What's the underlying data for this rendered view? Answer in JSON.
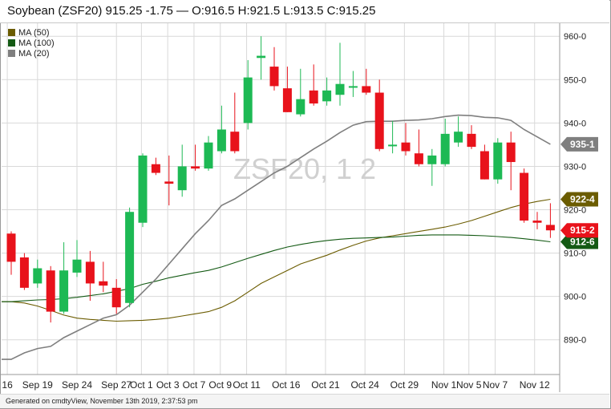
{
  "header": {
    "title": "Soybean (ZSF20) 915.25 -1.75 — O:916.5 H:921.5 L:913.5 C:915.25"
  },
  "footer": {
    "text": "Generated on cmdtyView, November 13th 2019, 2:37:53 pm"
  },
  "watermark": "ZSF20, 1 2",
  "legend": [
    {
      "label": "MA (50)",
      "color": "#6b5c00"
    },
    {
      "label": "MA (100)",
      "color": "#145a14"
    },
    {
      "label": "MA (20)",
      "color": "#7f7f7f"
    }
  ],
  "colors": {
    "up": "#1db954",
    "down": "#e8121b",
    "ma20": "#7f7f7f",
    "ma50": "#6b5c00",
    "ma100": "#145a14",
    "grid": "#d9d9d9"
  },
  "chart_data": {
    "type": "candlestick",
    "symbol": "ZSF20",
    "ylim": [
      882,
      963
    ],
    "yticks": [
      {
        "value": 890,
        "label": "890-0"
      },
      {
        "value": 900,
        "label": "900-0"
      },
      {
        "value": 910,
        "label": "910-0"
      },
      {
        "value": 920,
        "label": "920-0"
      },
      {
        "value": 930,
        "label": "930-0"
      },
      {
        "value": 940,
        "label": "940-0"
      },
      {
        "value": 950,
        "label": "950-0"
      },
      {
        "value": 960,
        "label": "960-0"
      }
    ],
    "xticks": [
      {
        "index": -0.3,
        "label": "16"
      },
      {
        "index": 2,
        "label": "Sep 19"
      },
      {
        "index": 5,
        "label": "Sep 24"
      },
      {
        "index": 8,
        "label": "Sep 27"
      },
      {
        "index": 9.9,
        "label": "Oct 1"
      },
      {
        "index": 11.9,
        "label": "Oct 3"
      },
      {
        "index": 13.9,
        "label": "Oct 7"
      },
      {
        "index": 15.9,
        "label": "Oct 9"
      },
      {
        "index": 17.9,
        "label": "Oct 11"
      },
      {
        "index": 20.9,
        "label": "Oct 16"
      },
      {
        "index": 23.9,
        "label": "Oct 21"
      },
      {
        "index": 26.9,
        "label": "Oct 24"
      },
      {
        "index": 29.9,
        "label": "Oct 29"
      },
      {
        "index": 32.9,
        "label": "Nov 1"
      },
      {
        "index": 34.8,
        "label": "Nov 5"
      },
      {
        "index": 36.8,
        "label": "Nov 7"
      },
      {
        "index": 39.8,
        "label": "Nov 12"
      }
    ],
    "candles": [
      {
        "o": 914.5,
        "h": 915.0,
        "l": 905.0,
        "c": 908.0
      },
      {
        "o": 909.0,
        "h": 910.0,
        "l": 901.5,
        "c": 902.0
      },
      {
        "o": 903.0,
        "h": 908.5,
        "l": 902.0,
        "c": 906.5
      },
      {
        "o": 906.0,
        "h": 907.0,
        "l": 894.0,
        "c": 896.5
      },
      {
        "o": 896.5,
        "h": 912.5,
        "l": 896.0,
        "c": 906.0
      },
      {
        "o": 905.5,
        "h": 913.0,
        "l": 904.5,
        "c": 908.5
      },
      {
        "o": 908.0,
        "h": 910.5,
        "l": 899.0,
        "c": 903.0
      },
      {
        "o": 903.5,
        "h": 908.0,
        "l": 901.0,
        "c": 902.5
      },
      {
        "o": 902.0,
        "h": 904.0,
        "l": 896.0,
        "c": 897.5
      },
      {
        "o": 898.5,
        "h": 920.5,
        "l": 897.5,
        "c": 919.5
      },
      {
        "o": 917.0,
        "h": 933.0,
        "l": 916.0,
        "c": 932.5
      },
      {
        "o": 930.5,
        "h": 932.0,
        "l": 928.0,
        "c": 928.5
      },
      {
        "o": 926.5,
        "h": 932.5,
        "l": 921.0,
        "c": 926.0
      },
      {
        "o": 924.5,
        "h": 935.0,
        "l": 923.0,
        "c": 930.0
      },
      {
        "o": 930.0,
        "h": 935.0,
        "l": 929.0,
        "c": 929.5
      },
      {
        "o": 929.5,
        "h": 937.0,
        "l": 929.0,
        "c": 935.5
      },
      {
        "o": 933.5,
        "h": 944.0,
        "l": 933.0,
        "c": 938.5
      },
      {
        "o": 938.0,
        "h": 947.0,
        "l": 933.0,
        "c": 933.5
      },
      {
        "o": 940.0,
        "h": 954.5,
        "l": 938.5,
        "c": 950.5
      },
      {
        "o": 955.0,
        "h": 960.0,
        "l": 950.0,
        "c": 955.5
      },
      {
        "o": 953.0,
        "h": 957.5,
        "l": 947.5,
        "c": 948.5
      },
      {
        "o": 948.0,
        "h": 953.0,
        "l": 942.5,
        "c": 942.5
      },
      {
        "o": 942.0,
        "h": 952.5,
        "l": 941.5,
        "c": 945.5
      },
      {
        "o": 947.5,
        "h": 953.5,
        "l": 944.0,
        "c": 944.5
      },
      {
        "o": 945.0,
        "h": 950.5,
        "l": 944.0,
        "c": 947.5
      },
      {
        "o": 946.5,
        "h": 958.5,
        "l": 944.0,
        "c": 949.0
      },
      {
        "o": 948.5,
        "h": 952.0,
        "l": 946.0,
        "c": 948.5
      },
      {
        "o": 948.5,
        "h": 952.5,
        "l": 946.5,
        "c": 947.0
      },
      {
        "o": 947.0,
        "h": 950.0,
        "l": 933.5,
        "c": 934.0
      },
      {
        "o": 935.0,
        "h": 940.5,
        "l": 933.0,
        "c": 935.0
      },
      {
        "o": 935.5,
        "h": 940.0,
        "l": 932.5,
        "c": 933.5
      },
      {
        "o": 933.0,
        "h": 938.5,
        "l": 930.0,
        "c": 930.5
      },
      {
        "o": 930.5,
        "h": 934.0,
        "l": 925.5,
        "c": 932.5
      },
      {
        "o": 930.5,
        "h": 941.0,
        "l": 930.0,
        "c": 937.5
      },
      {
        "o": 935.5,
        "h": 941.5,
        "l": 934.5,
        "c": 938.0
      },
      {
        "o": 937.5,
        "h": 939.5,
        "l": 934.0,
        "c": 934.5
      },
      {
        "o": 933.5,
        "h": 935.0,
        "l": 927.0,
        "c": 927.0
      },
      {
        "o": 927.0,
        "h": 936.5,
        "l": 926.0,
        "c": 935.5
      },
      {
        "o": 935.5,
        "h": 938.0,
        "l": 924.5,
        "c": 931.0
      },
      {
        "o": 928.5,
        "h": 929.5,
        "l": 917.0,
        "c": 917.5
      },
      {
        "o": 917.5,
        "h": 919.5,
        "l": 915.5,
        "c": 917.0
      },
      {
        "o": 916.5,
        "h": 921.5,
        "l": 913.5,
        "c": 915.25
      }
    ],
    "ma20": [
      885.5,
      887.0,
      888.0,
      888.5,
      890.5,
      892.0,
      893.5,
      895.0,
      895.8,
      898.0,
      901.0,
      904.0,
      907.5,
      911.0,
      914.5,
      917.5,
      921.0,
      922.5,
      924.5,
      926.5,
      928.5,
      930.0,
      932.0,
      934.0,
      935.8,
      937.8,
      939.5,
      940.3,
      940.4,
      940.4,
      940.6,
      940.7,
      941.0,
      941.5,
      941.8,
      941.7,
      941.3,
      941.2,
      940.6,
      938.5,
      936.8,
      935.1
    ],
    "ma50": [
      898.8,
      898.5,
      897.8,
      896.8,
      895.7,
      895.0,
      894.7,
      894.5,
      894.3,
      894.4,
      894.5,
      894.7,
      895.0,
      895.5,
      896.0,
      896.5,
      897.5,
      899.0,
      901.0,
      903.0,
      904.5,
      906.0,
      907.5,
      908.5,
      909.5,
      910.7,
      911.8,
      912.8,
      913.5,
      914.0,
      914.5,
      915.0,
      915.5,
      916.0,
      916.7,
      917.5,
      918.5,
      919.5,
      920.5,
      921.3,
      921.9,
      922.4
    ],
    "ma100": [
      898.8,
      899.0,
      899.2,
      899.3,
      899.5,
      899.8,
      900.2,
      900.6,
      901.2,
      901.8,
      902.8,
      903.5,
      904.3,
      904.9,
      905.5,
      906.0,
      906.8,
      907.8,
      908.8,
      909.7,
      910.6,
      911.4,
      912.0,
      912.5,
      912.9,
      913.2,
      913.4,
      913.5,
      913.6,
      913.7,
      913.9,
      914.1,
      914.2,
      914.2,
      914.2,
      914.1,
      914.0,
      913.8,
      913.6,
      913.3,
      913.0,
      912.6
    ],
    "price_tags": [
      {
        "value": 935.1,
        "label": "935-1",
        "color": "#7f7f7f",
        "text_color": "#ffffff"
      },
      {
        "value": 922.4,
        "label": "922-4",
        "color": "#6b5c00",
        "text_color": "#ffffff"
      },
      {
        "value": 912.6,
        "label": "912-6",
        "color": "#145a14",
        "text_color": "#ffffff"
      },
      {
        "value": 915.25,
        "label": "915-2",
        "color": "#e8121b",
        "text_color": "#ffffff"
      }
    ],
    "title": "Soybean (ZSF20)",
    "xlabel": "",
    "ylabel": "",
    "grid": true,
    "legend_position": "top-left"
  }
}
